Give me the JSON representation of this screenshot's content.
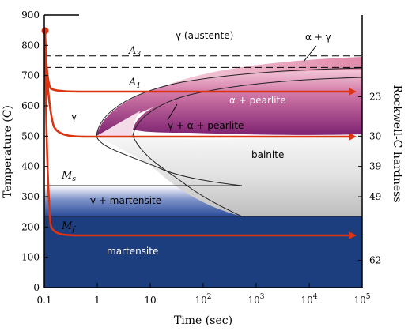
{
  "axes": {
    "y_label": "Temperature (C)",
    "x_label": "Time (sec)",
    "right_label": "Rockwell-C hardness",
    "y_ticks": [
      "0",
      "100",
      "200",
      "300",
      "400",
      "500",
      "600",
      "700",
      "800",
      "900"
    ],
    "x_ticks": [
      {
        "base": "0.1",
        "exp": ""
      },
      {
        "base": "1",
        "exp": ""
      },
      {
        "base": "10",
        "exp": ""
      },
      {
        "base": "10",
        "exp": "2"
      },
      {
        "base": "10",
        "exp": "3"
      },
      {
        "base": "10",
        "exp": "4"
      },
      {
        "base": "10",
        "exp": "5"
      }
    ],
    "hardness_ticks": [
      {
        "label": "23",
        "temp": 630
      },
      {
        "label": "30",
        "temp": 500
      },
      {
        "label": "39",
        "temp": 400
      },
      {
        "label": "49",
        "temp": 300
      },
      {
        "label": "62",
        "temp": 90
      }
    ]
  },
  "temperatures": {
    "A3": {
      "label": "A",
      "sub": "3",
      "value": 765
    },
    "A1": {
      "label": "A",
      "sub": "1",
      "value": 727
    },
    "Ms": {
      "label": "M",
      "sub": "s",
      "value": 335
    },
    "Mf": {
      "label": "M",
      "sub": "f",
      "value": 235
    }
  },
  "regions": {
    "austenite": "γ  (austente)",
    "alpha_gamma": "α + γ",
    "alpha_pearlite": "α + pearlite",
    "gamma": "γ",
    "gamma_alpha_pearlite": "γ + α + pearlite",
    "bainite": "bainite",
    "gamma_martensite": "γ + martensite",
    "martensite": "martensite"
  },
  "colors": {
    "martensite": "#1e3f80",
    "gamma_martensite": "#3a58a8",
    "bainite": "#d8d8d8",
    "pearlite_light": "#f0b8d0",
    "pearlite_dark": "#8a2a78",
    "cooling_path": "#dd3311"
  }
}
